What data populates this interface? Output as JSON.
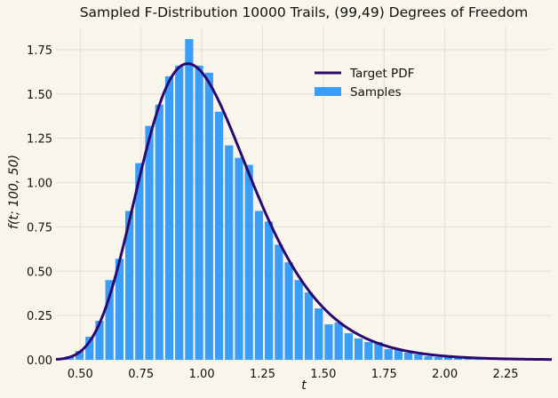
{
  "chart_data": {
    "type": "bar",
    "title": "Sampled F-Distribution 10000 Trails, (99,49) Degrees of Freedom",
    "xlabel": "t",
    "ylabel": "f(t; 100, 50)",
    "xlim": [
      0.4,
      2.44
    ],
    "ylim": [
      0,
      1.88
    ],
    "grid": true,
    "legend_position": "top-right",
    "x_ticks": [
      "0.50",
      "0.75",
      "1.00",
      "1.25",
      "1.50",
      "1.75",
      "2.00",
      "2.25"
    ],
    "x_tick_values": [
      0.5,
      0.75,
      1.0,
      1.25,
      1.5,
      1.75,
      2.0,
      2.25
    ],
    "y_ticks": [
      "0.00",
      "0.25",
      "0.50",
      "0.75",
      "1.00",
      "1.25",
      "1.50",
      "1.75"
    ],
    "y_tick_values": [
      0,
      0.25,
      0.5,
      0.75,
      1.0,
      1.25,
      1.5,
      1.75
    ],
    "series": [
      {
        "name": "Samples",
        "kind": "histogram",
        "color": "#3a9df8",
        "bin_centers": [
          0.456,
          0.497,
          0.538,
          0.579,
          0.62,
          0.661,
          0.702,
          0.743,
          0.784,
          0.825,
          0.866,
          0.907,
          0.948,
          0.989,
          1.03,
          1.071,
          1.112,
          1.153,
          1.194,
          1.235,
          1.276,
          1.317,
          1.358,
          1.399,
          1.44,
          1.481,
          1.522,
          1.563,
          1.604,
          1.645,
          1.686,
          1.727,
          1.768,
          1.809,
          1.85,
          1.891,
          1.932,
          1.973,
          2.014,
          2.055,
          2.096,
          2.137
        ],
        "values": [
          0.02,
          0.05,
          0.13,
          0.22,
          0.45,
          0.57,
          0.84,
          1.11,
          1.32,
          1.44,
          1.6,
          1.66,
          1.81,
          1.66,
          1.62,
          1.4,
          1.21,
          1.14,
          1.1,
          0.84,
          0.78,
          0.65,
          0.55,
          0.45,
          0.38,
          0.29,
          0.2,
          0.21,
          0.15,
          0.12,
          0.1,
          0.1,
          0.06,
          0.06,
          0.04,
          0.03,
          0.02,
          0.015,
          0.015,
          0.01,
          0.01,
          0.008
        ]
      },
      {
        "name": "Target PDF",
        "kind": "line",
        "color": "#2a0870",
        "df1": 100,
        "df2": 50
      }
    ]
  }
}
